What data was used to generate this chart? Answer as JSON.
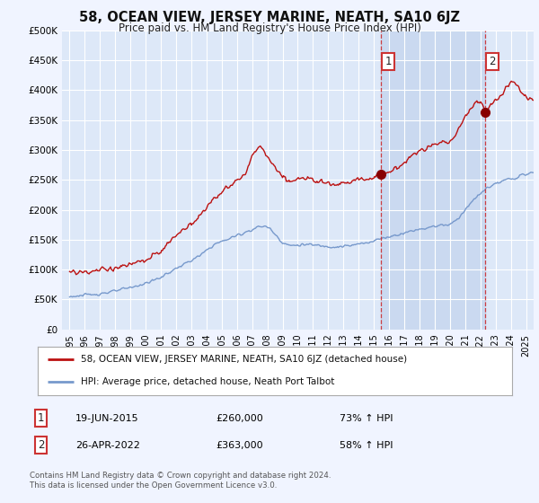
{
  "title": "58, OCEAN VIEW, JERSEY MARINE, NEATH, SA10 6JZ",
  "subtitle": "Price paid vs. HM Land Registry's House Price Index (HPI)",
  "hpi_label": "HPI: Average price, detached house, Neath Port Talbot",
  "property_label": "58, OCEAN VIEW, JERSEY MARINE, NEATH, SA10 6JZ (detached house)",
  "sale1_date": "19-JUN-2015",
  "sale1_price": 260000,
  "sale1_hpi": "73% ↑ HPI",
  "sale2_date": "26-APR-2022",
  "sale2_price": 363000,
  "sale2_hpi": "58% ↑ HPI",
  "footer": "Contains HM Land Registry data © Crown copyright and database right 2024.\nThis data is licensed under the Open Government Licence v3.0.",
  "background_color": "#f0f4ff",
  "plot_bg_color": "#dde8f8",
  "shade_color": "#c8d8f0",
  "grid_color": "#ffffff",
  "red_color": "#bb1111",
  "blue_color": "#7799cc",
  "ylim": [
    0,
    500000
  ],
  "yticks": [
    0,
    50000,
    100000,
    150000,
    200000,
    250000,
    300000,
    350000,
    400000,
    450000,
    500000
  ],
  "sale1_x": 2015.46,
  "sale1_y": 260000,
  "sale2_x": 2022.32,
  "sale2_y": 363000,
  "vline1_x": 2015.46,
  "vline2_x": 2022.32,
  "xmin": 1994.5,
  "xmax": 2025.5
}
